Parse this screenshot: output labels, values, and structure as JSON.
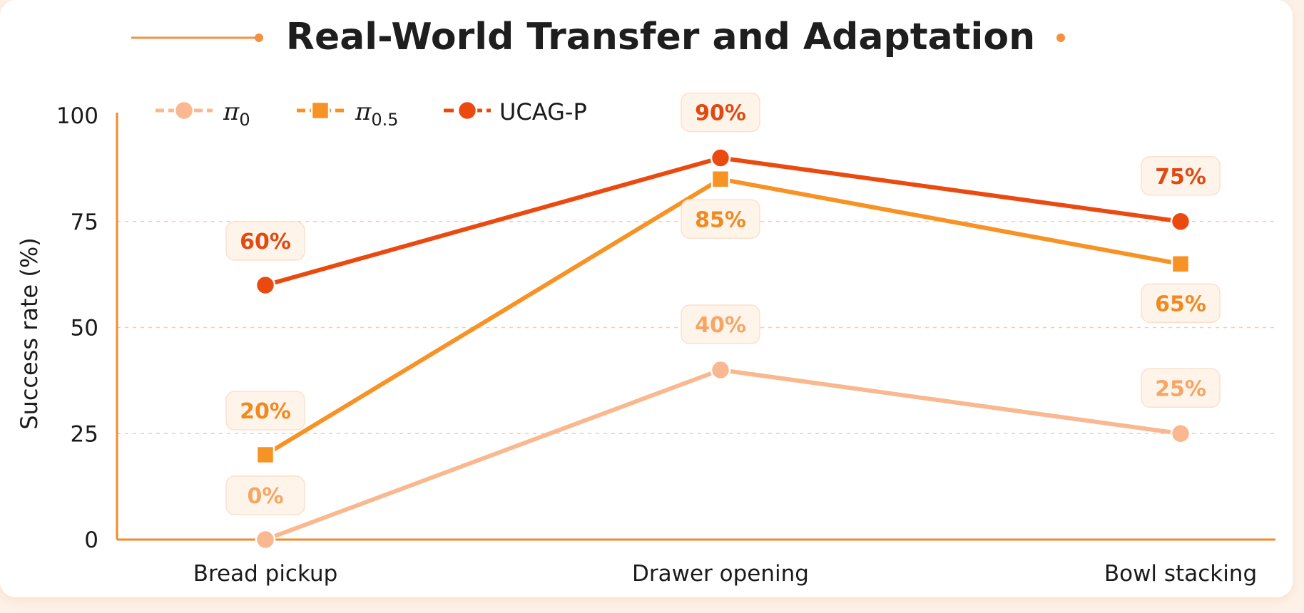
{
  "chart_data": {
    "type": "line",
    "title": "Real-World Transfer and Adaptation",
    "ylabel": "Success rate  (%)",
    "xlabel": "",
    "categories": [
      "Bread pickup",
      "Drawer opening",
      "Bowl stacking"
    ],
    "ylim": [
      0,
      100
    ],
    "yticks": [
      "0",
      "25",
      "50",
      "75",
      "100"
    ],
    "grid": "horizontal dashed",
    "legend_position": "top-left",
    "series": [
      {
        "name": "π0",
        "name_base": "π",
        "name_sub": "0",
        "marker": "circle",
        "color": "#f9b88f",
        "label_color": "#f7a565",
        "values": [
          0,
          40,
          25
        ],
        "labels": [
          "0%",
          "40%",
          "25%"
        ]
      },
      {
        "name": "π0.5",
        "name_base": "π",
        "name_sub": "0.5",
        "marker": "square",
        "color": "#f79225",
        "label_color": "#f08a20",
        "values": [
          20,
          85,
          65
        ],
        "labels": [
          "20%",
          "85%",
          "65%"
        ]
      },
      {
        "name": "UCAG-P",
        "name_base": "UCAG-P",
        "name_sub": "",
        "marker": "circle",
        "color": "#ea4a10",
        "label_color": "#e04a12",
        "values": [
          60,
          90,
          75
        ],
        "labels": [
          "60%",
          "90%",
          "75%"
        ]
      }
    ]
  }
}
